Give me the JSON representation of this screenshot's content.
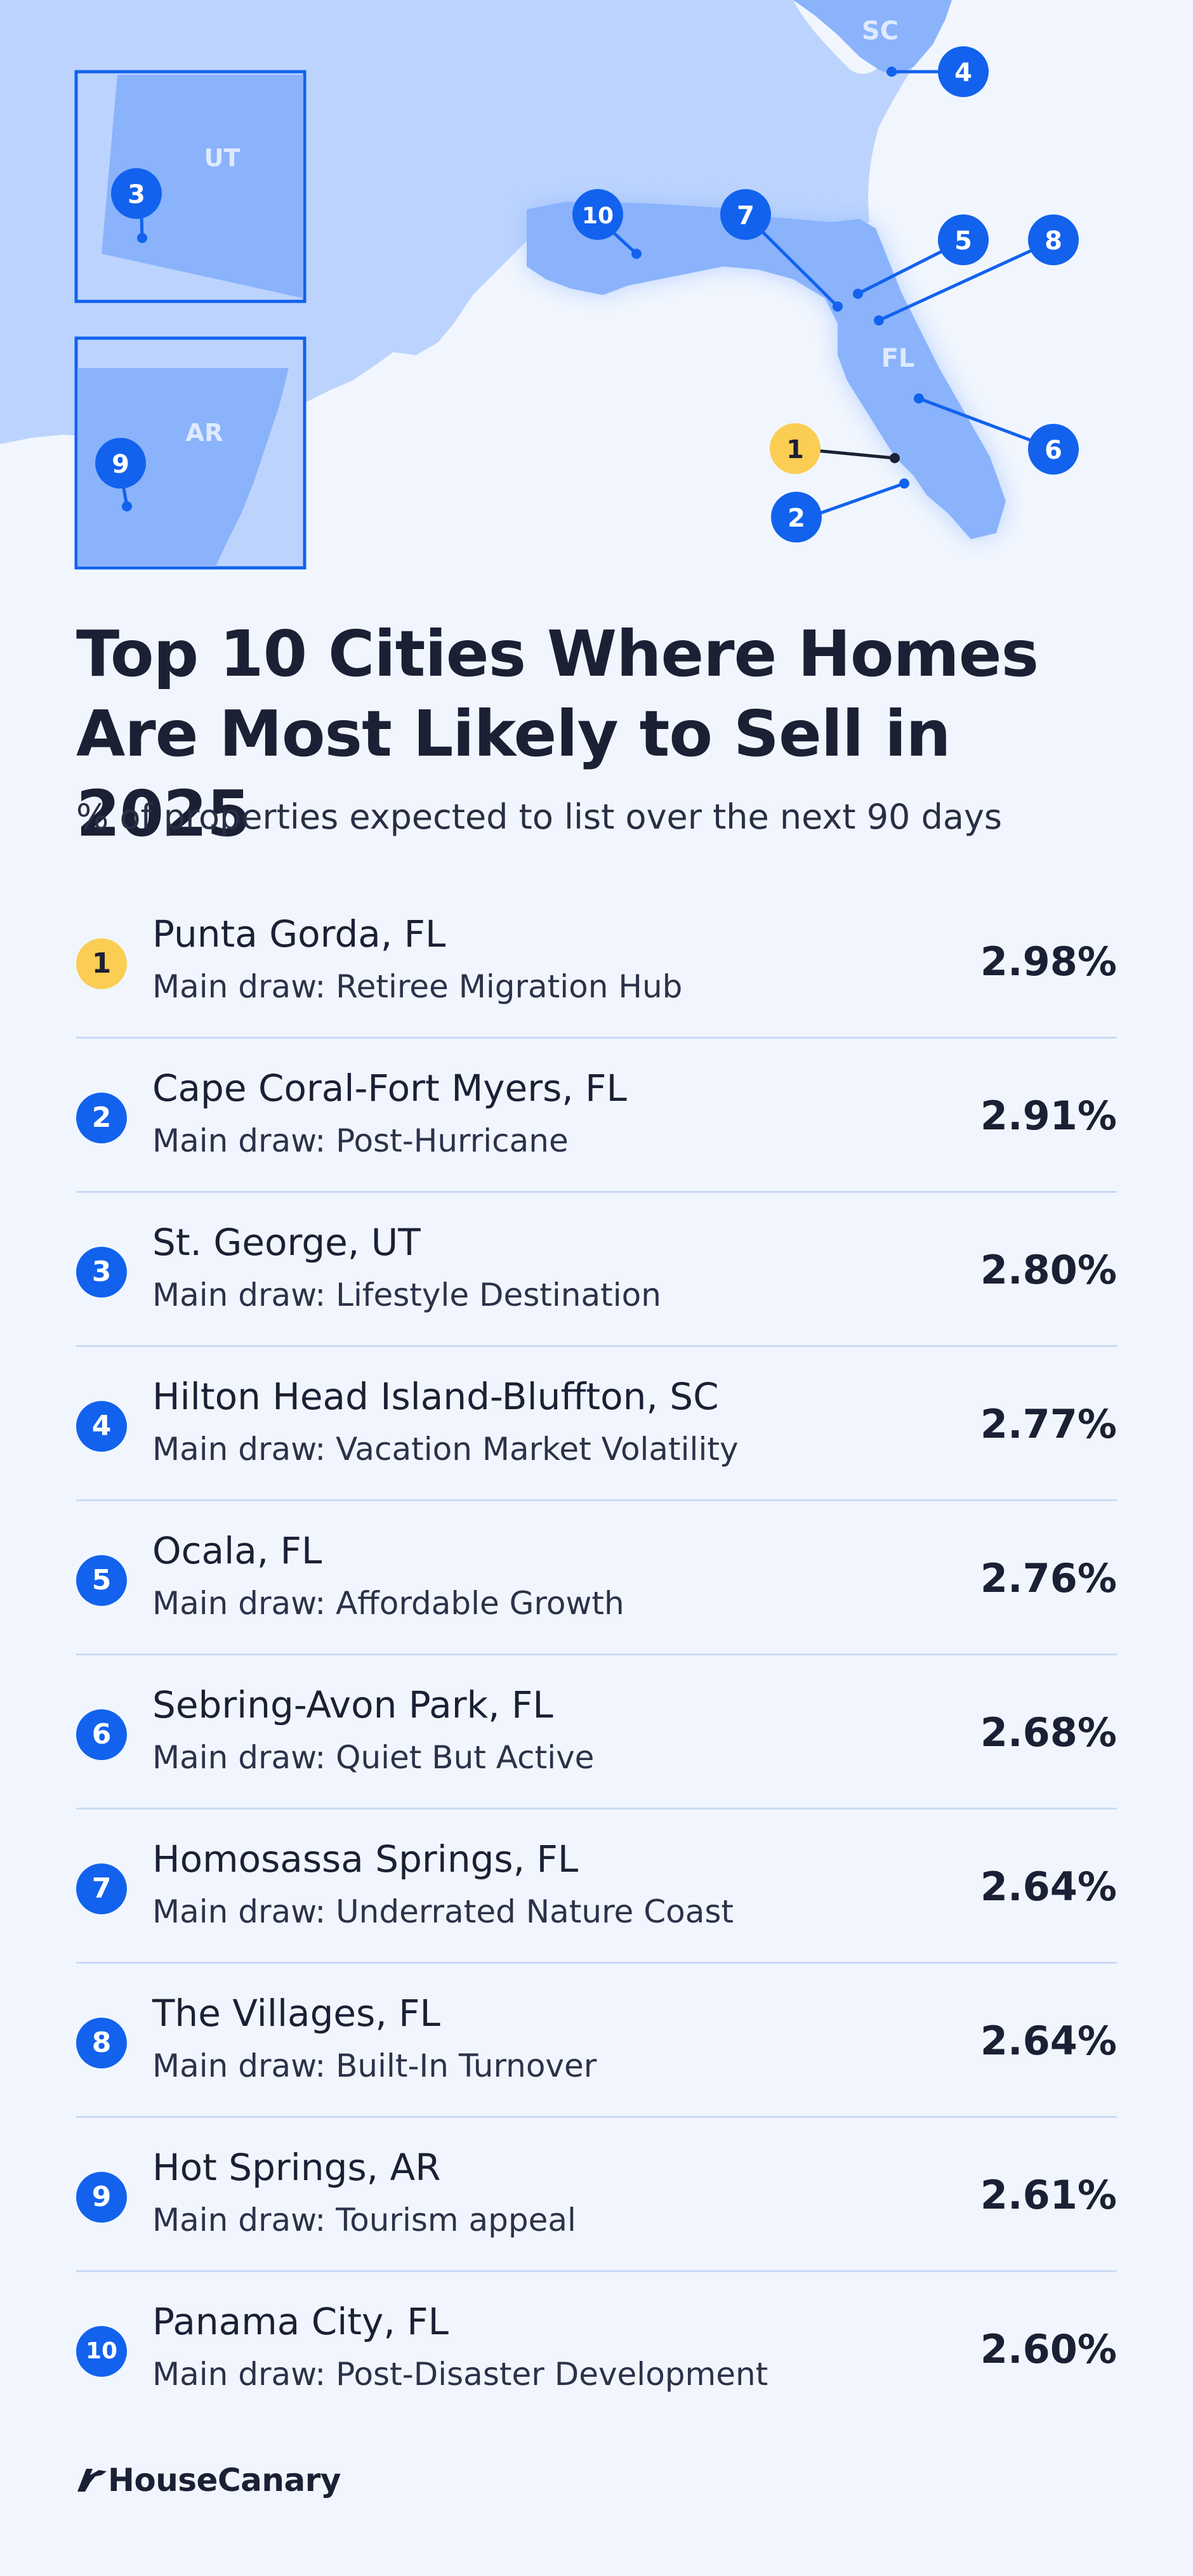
{
  "chart_data": {
    "type": "table",
    "title": "Top 10 Cities Where Homes Are Most Likely to Sell in 2025",
    "subtitle": "% of properties expected to list over the next 90 days",
    "rows": [
      {
        "rank": "1",
        "city": "Punta Gorda, FL",
        "draw": "Main draw: Retiree Migration Hub",
        "value": 2.98,
        "value_label": "2.98%"
      },
      {
        "rank": "2",
        "city": "Cape Coral-Fort Myers, FL",
        "draw": "Main draw: Post-Hurricane",
        "value": 2.91,
        "value_label": "2.91%"
      },
      {
        "rank": "3",
        "city": "St. George, UT",
        "draw": "Main draw: Lifestyle Destination",
        "value": 2.8,
        "value_label": "2.80%"
      },
      {
        "rank": "4",
        "city": "Hilton Head Island-Bluffton, SC",
        "draw": "Main draw: Vacation Market Volatility",
        "value": 2.77,
        "value_label": "2.77%"
      },
      {
        "rank": "5",
        "city": "Ocala, FL",
        "draw": "Main draw: Affordable Growth",
        "value": 2.76,
        "value_label": "2.76%"
      },
      {
        "rank": "6",
        "city": "Sebring-Avon Park, FL",
        "draw": "Main draw: Quiet But Active",
        "value": 2.68,
        "value_label": "2.68%"
      },
      {
        "rank": "7",
        "city": "Homosassa Springs, FL",
        "draw": "Main draw: Underrated Nature Coast",
        "value": 2.64,
        "value_label": "2.64%"
      },
      {
        "rank": "8",
        "city": "The Villages, FL",
        "draw": "Main draw: Built-In Turnover",
        "value": 2.64,
        "value_label": "2.64%"
      },
      {
        "rank": "9",
        "city": "Hot Springs, AR",
        "draw": "Main draw: Tourism appeal",
        "value": 2.61,
        "value_label": "2.61%"
      },
      {
        "rank": "10",
        "city": "Panama City, FL",
        "draw": "Main draw: Post-Disaster Development",
        "value": 2.6,
        "value_label": "2.60%"
      }
    ]
  },
  "map": {
    "state_labels": {
      "sc": "SC",
      "ut": "UT",
      "ar": "AR",
      "fl": "FL"
    },
    "markers": [
      "1",
      "2",
      "3",
      "4",
      "5",
      "6",
      "7",
      "8",
      "9",
      "10"
    ]
  },
  "brand": {
    "name": "HouseCanary",
    "logo_icon": "housecanary-bird-icon"
  },
  "colors": {
    "background": "#f1f6fe",
    "land": "#bcd4fd",
    "highlight_state": "#8ab3fc",
    "marker": "#1262ee",
    "marker_top": "#fbcd52",
    "text": "#1c2035",
    "divider": "#c9daf5"
  }
}
